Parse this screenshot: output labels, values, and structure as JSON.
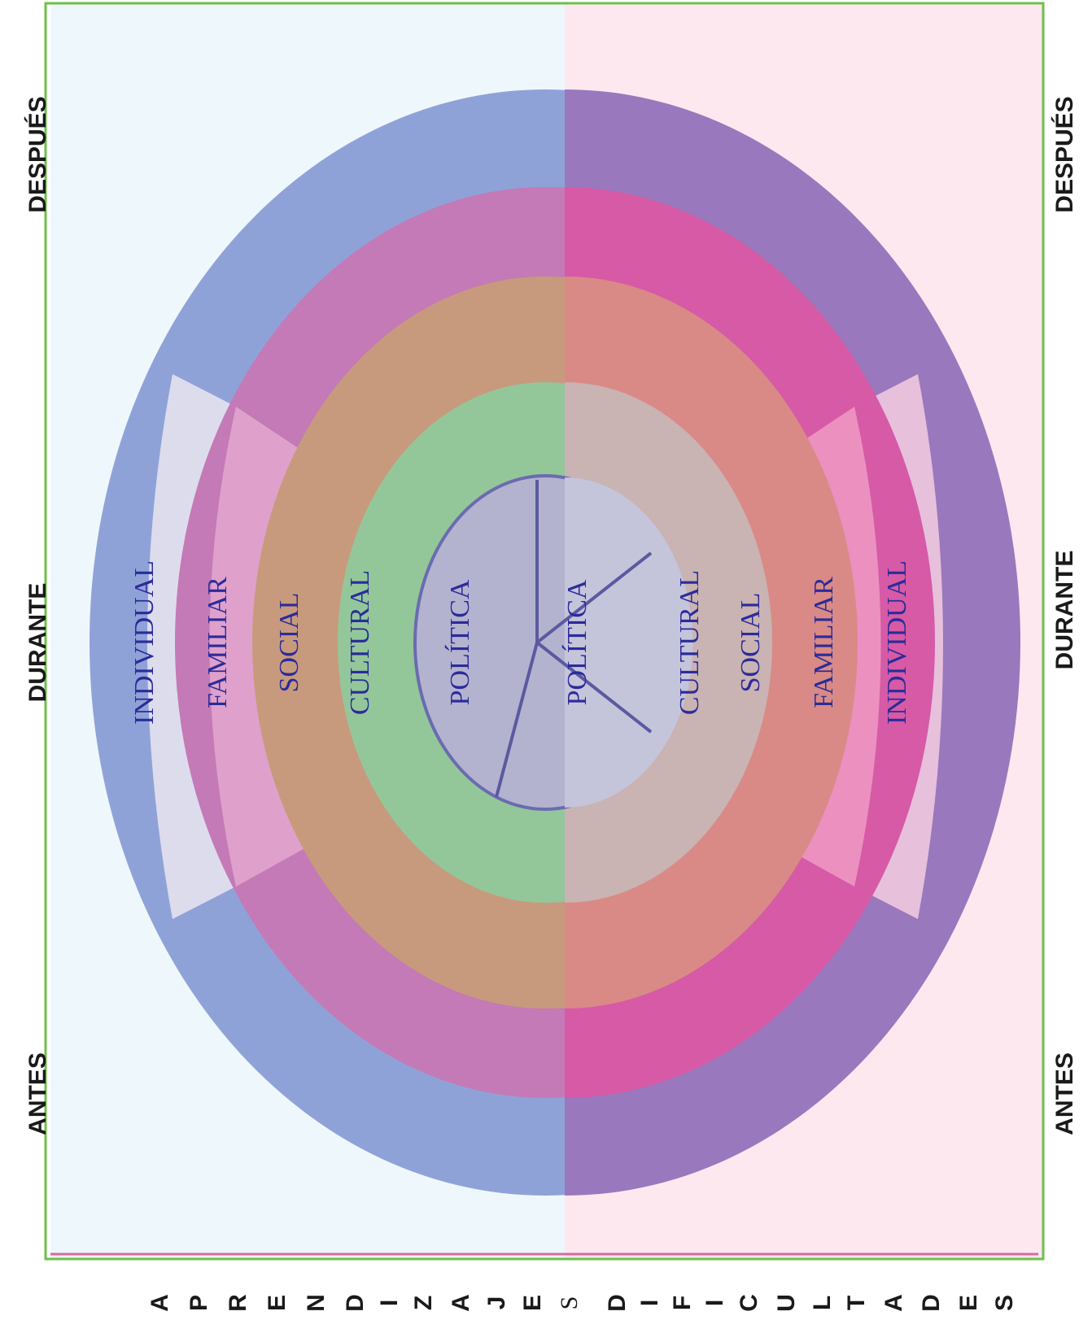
{
  "colors": {
    "left_panel": "#eef7fb",
    "right_panel": "#fde8f0",
    "border_green": "#6fbf4a",
    "label_blue": "#2b2b9a",
    "individual_left": "#8fa2d8",
    "individual_right": "#9a78bd",
    "familiar_left": "#c47ab6",
    "familiar_right": "#d65aa6",
    "social_left": "#c89a7d",
    "social_right": "#d98a86",
    "cultural_left": "#93c79a",
    "cultural_right": "#c9b3b3",
    "politica": "#b3b3cf",
    "segment_light_left": "#e6e2f0",
    "segment_light_right": "#f0c8df"
  },
  "time_labels": {
    "left": [
      "DESPUÉS",
      "DURANTE",
      "ANTES"
    ],
    "right": [
      "DESPUÉS",
      "DURANTE",
      "ANTES"
    ]
  },
  "left_rings": [
    "INDIVIDUAL",
    "FAMILIAR",
    "SOCIAL",
    "CULTURAL",
    "POLÍTICA"
  ],
  "right_rings": [
    "POLÍTICA",
    "CULTURAL",
    "SOCIAL",
    "FAMILIAR",
    "INDIVIDUAL"
  ],
  "bottom_words": {
    "left": [
      "A",
      "P",
      "R",
      "E",
      "N",
      "D",
      "I",
      "Z",
      "A",
      "J",
      "E",
      "S"
    ],
    "right": [
      "D",
      "I",
      "F",
      "I",
      "C",
      "U",
      "L",
      "T",
      "A",
      "D",
      "E",
      "S"
    ]
  }
}
